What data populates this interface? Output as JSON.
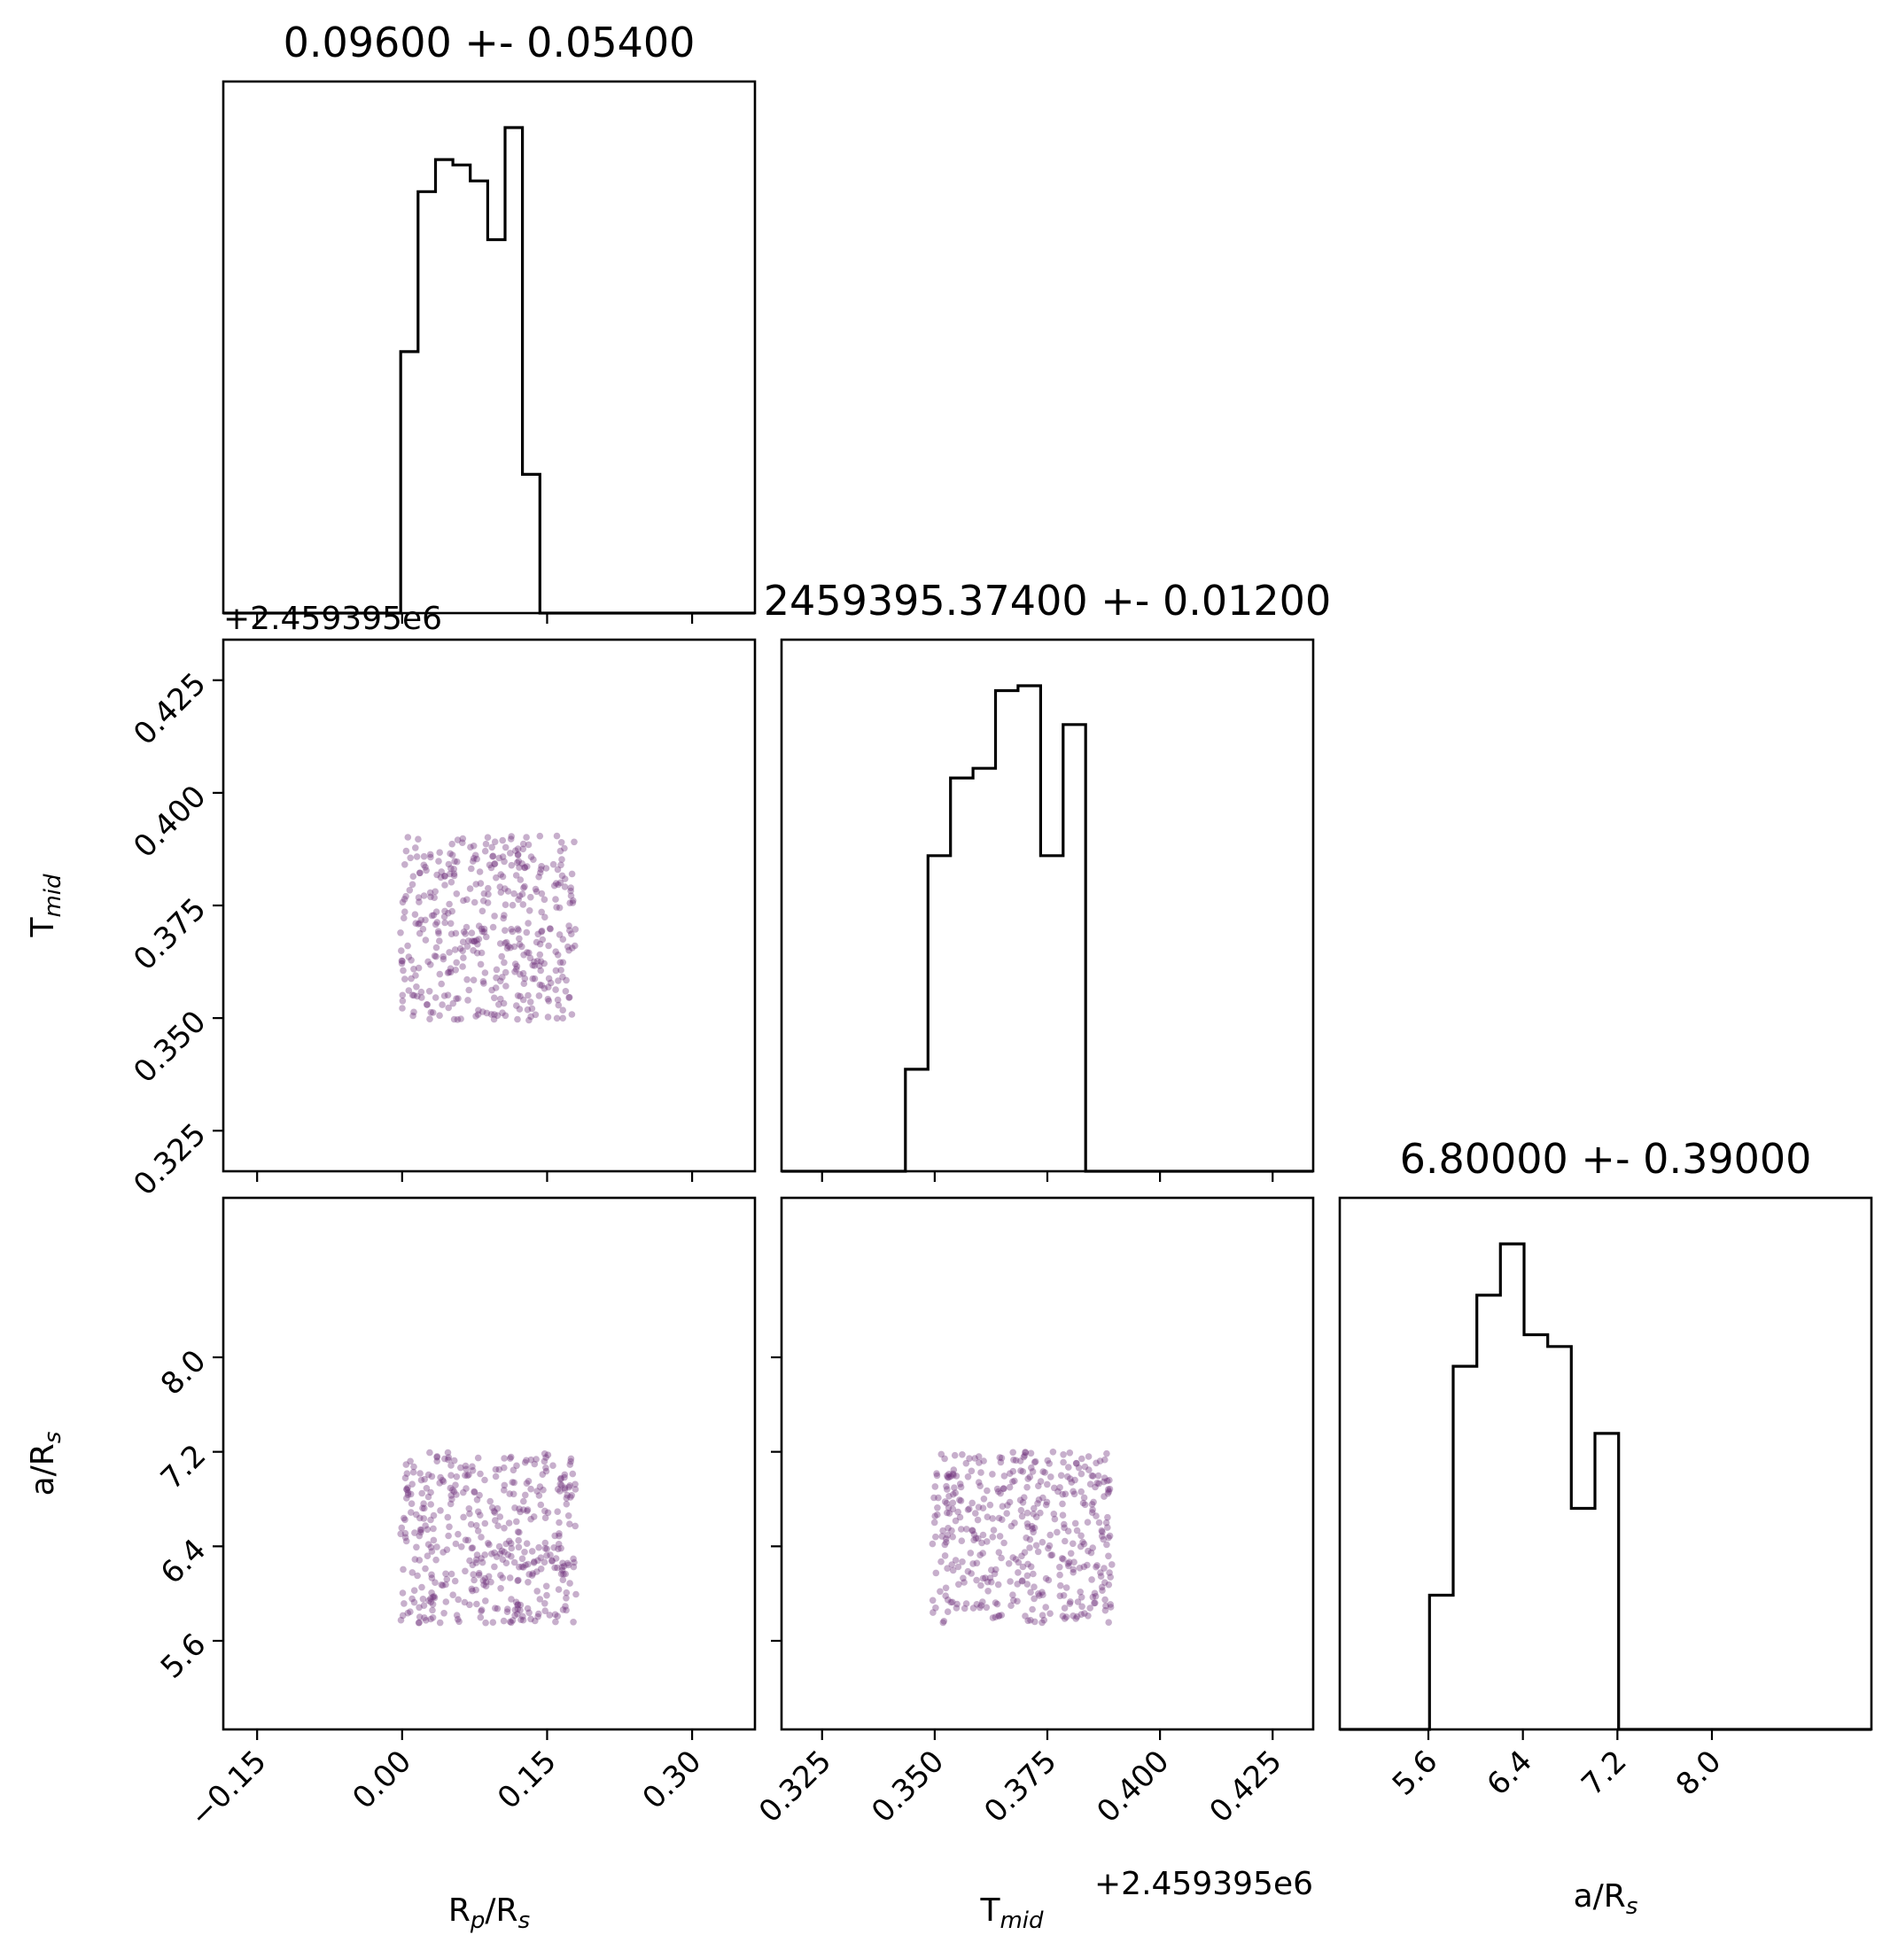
{
  "colors": {
    "points": "#6b2c7a",
    "lines": "#000000"
  },
  "chart_data": {
    "type": "corner",
    "parameters": [
      {
        "key": "rp",
        "label_main": "R",
        "label_sub1": "p",
        "label_mid": "/R",
        "label_sub2": "s",
        "title": "0.09600 +- 0.05400",
        "range": [
          -0.185,
          0.365
        ],
        "ticks": [
          -0.15,
          0.0,
          0.15,
          0.3
        ],
        "tick_labels": [
          "−0.15",
          "0.00",
          "0.15",
          "0.30"
        ]
      },
      {
        "key": "tmid",
        "label_main": "T",
        "label_sub1": "mid",
        "label_mid": "",
        "label_sub2": "",
        "title": "2459395.37400 +- 0.01200",
        "offset_text": "+2.459395e6",
        "range": [
          0.316,
          0.434
        ],
        "ticks": [
          0.325,
          0.35,
          0.375,
          0.4,
          0.425
        ],
        "tick_labels": [
          "0.325",
          "0.350",
          "0.375",
          "0.400",
          "0.425"
        ]
      },
      {
        "key": "ars",
        "label_main": "a",
        "label_sub1": "",
        "label_mid": "/R",
        "label_sub2": "s",
        "title": "6.80000 +- 0.39000",
        "range": [
          4.85,
          9.35
        ],
        "ticks": [
          5.6,
          6.4,
          7.2,
          8.0
        ],
        "tick_labels": [
          "5.6",
          "6.4",
          "7.2",
          "8.0"
        ]
      }
    ],
    "histograms": [
      {
        "param": "rp",
        "edges": [
          -0.185,
          -0.0015,
          0.0165,
          0.0345,
          0.0525,
          0.0705,
          0.0885,
          0.1065,
          0.1245,
          0.1425,
          0.1605,
          0.1785,
          0.365
        ],
        "counts": [
          0,
          49,
          79,
          85,
          84,
          81,
          70,
          91,
          26,
          0,
          0,
          0
        ]
      },
      {
        "param": "tmid",
        "edges": [
          0.316,
          0.3435,
          0.3485,
          0.3535,
          0.3585,
          0.3635,
          0.3685,
          0.3735,
          0.3785,
          0.3835,
          0.389,
          0.434
        ],
        "counts": [
          0,
          21,
          65,
          81,
          83,
          99,
          100,
          65,
          92,
          0,
          0
        ]
      },
      {
        "param": "ars",
        "edges": [
          4.85,
          5.61,
          5.81,
          6.01,
          6.21,
          6.41,
          6.61,
          6.81,
          7.01,
          7.21,
          9.35
        ],
        "counts": [
          0,
          34,
          92,
          110,
          123,
          100,
          97,
          56,
          75,
          0
        ]
      }
    ],
    "scatter_pairs": [
      {
        "x": "rp",
        "y": "tmid",
        "x_range": [
          -0.002,
          0.18
        ],
        "y_range": [
          0.3495,
          0.3905
        ],
        "n": 420
      },
      {
        "x": "rp",
        "y": "ars",
        "x_range": [
          -0.002,
          0.18
        ],
        "y_range": [
          5.75,
          7.2
        ],
        "n": 420
      },
      {
        "x": "tmid",
        "y": "ars",
        "x_range": [
          0.3495,
          0.3895
        ],
        "y_range": [
          5.75,
          7.2
        ],
        "n": 420
      }
    ],
    "grid": false
  }
}
